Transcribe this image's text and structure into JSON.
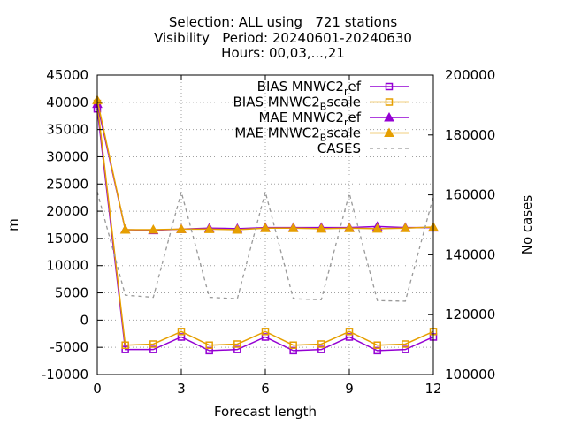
{
  "title": {
    "line1": "Selection: ALL using   721 stations",
    "line2": "Visibility   Period: 20240601-20240630",
    "line3": "Hours: 00,03,...,21"
  },
  "chart_data": {
    "type": "line",
    "xlabel": "Forecast length",
    "ylabel": "m",
    "y2label": "No cases",
    "xlim": [
      0,
      12
    ],
    "ylim": [
      -10000,
      45000
    ],
    "y2lim": [
      100000,
      200000
    ],
    "xticks": [
      0,
      3,
      6,
      9,
      12
    ],
    "yticks": [
      -10000,
      -5000,
      0,
      5000,
      10000,
      15000,
      20000,
      25000,
      30000,
      35000,
      40000,
      45000
    ],
    "y2ticks": [
      100000,
      120000,
      140000,
      160000,
      180000,
      200000
    ],
    "grid": true,
    "legend_position": "top-right",
    "x": [
      0,
      1,
      2,
      3,
      4,
      5,
      6,
      7,
      8,
      9,
      10,
      11,
      12
    ],
    "series": [
      {
        "name": "BIAS MNWC2_ref",
        "legend_main": "BIAS MNWC2",
        "legend_sub": "r",
        "legend_tail": "ef",
        "color": "#9400d3",
        "marker": "square",
        "axis": "y",
        "values": [
          38800,
          -5400,
          -5400,
          -3100,
          -5600,
          -5400,
          -3100,
          -5600,
          -5400,
          -3100,
          -5600,
          -5400,
          -3100
        ]
      },
      {
        "name": "BIAS MNWC2_Bscale",
        "legend_main": "BIAS MNWC2",
        "legend_sub": "B",
        "legend_tail": "scale",
        "color": "#e69f00",
        "marker": "square",
        "axis": "y",
        "values": [
          39800,
          -4600,
          -4400,
          -2100,
          -4600,
          -4400,
          -2100,
          -4600,
          -4400,
          -2100,
          -4600,
          -4400,
          -2100
        ]
      },
      {
        "name": "MAE MNWC2_ref",
        "legend_main": "MAE MNWC2",
        "legend_sub": "r",
        "legend_tail": "ef",
        "color": "#9400d3",
        "marker": "triangle",
        "axis": "y",
        "values": [
          39700,
          16600,
          16500,
          16700,
          16900,
          16800,
          17000,
          17000,
          17000,
          17000,
          17200,
          17000,
          17000
        ]
      },
      {
        "name": "MAE MNWC2_Bscale",
        "legend_main": "MAE MNWC2",
        "legend_sub": "B",
        "legend_tail": "scale",
        "color": "#e69f00",
        "marker": "triangle",
        "axis": "y",
        "values": [
          40400,
          16600,
          16600,
          16700,
          16700,
          16600,
          16900,
          16900,
          16800,
          16900,
          16800,
          16900,
          17100
        ]
      },
      {
        "name": "CASES",
        "legend_main": "CASES",
        "legend_sub": "",
        "legend_tail": "",
        "color": "#999999",
        "marker": "none",
        "dashed": true,
        "axis": "y2",
        "values": [
          161000,
          126500,
          125800,
          161000,
          125800,
          125300,
          161000,
          125300,
          125000,
          160500,
          124700,
          124500,
          159500
        ]
      }
    ]
  }
}
